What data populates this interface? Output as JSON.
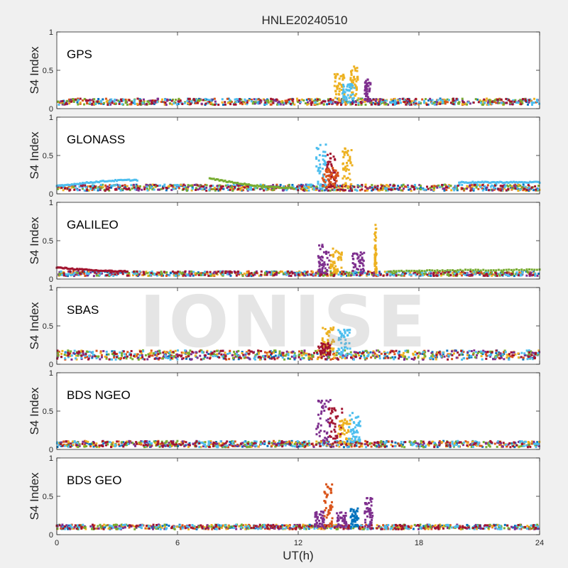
{
  "chart_data": {
    "type": "scatter",
    "title": "HNLE20240510",
    "xlabel": "UT(h)",
    "xlim": [
      0,
      24
    ],
    "xticks": [
      "0",
      "6",
      "12",
      "18",
      "24"
    ],
    "ylabel": "S4 Index",
    "ylim": [
      0,
      1
    ],
    "yticks": [
      "0",
      "0.5",
      "1"
    ],
    "grid": false,
    "series_colors": [
      "#0072bd",
      "#d95319",
      "#edb120",
      "#7e2f8e",
      "#77ac30",
      "#4dbeee",
      "#a2142f"
    ],
    "panels": [
      {
        "name": "GPS",
        "baseline": 0.09,
        "baseline_spread": 0.04,
        "activity": [
          {
            "x": [
              13.8,
              14.3
            ],
            "ymax": 0.5,
            "color": "#edb120"
          },
          {
            "x": [
              14.6,
              15.0
            ],
            "ymax": 0.55,
            "color": "#edb120"
          },
          {
            "x": [
              15.3,
              15.6
            ],
            "ymax": 0.38,
            "color": "#7e2f8e"
          },
          {
            "x": [
              14.2,
              14.8
            ],
            "ymax": 0.32,
            "color": "#4dbeee"
          }
        ]
      },
      {
        "name": "GLONASS",
        "baseline": 0.08,
        "baseline_spread": 0.04,
        "arcs": [
          {
            "x": [
              0,
              4
            ],
            "y0": 0.1,
            "peak": 0.18,
            "color": "#4dbeee"
          },
          {
            "x": [
              7.6,
              11.7
            ],
            "y0": 0.2,
            "peak": 0.08,
            "color": "#77ac30"
          },
          {
            "x": [
              20,
              24
            ],
            "y0": 0.15,
            "peak": 0.15,
            "color": "#4dbeee"
          }
        ],
        "activity": [
          {
            "x": [
              12.9,
              13.4
            ],
            "ymax": 0.65,
            "color": "#4dbeee"
          },
          {
            "x": [
              13.4,
              13.9
            ],
            "ymax": 0.55,
            "color": "#a2142f"
          },
          {
            "x": [
              14.2,
              14.7
            ],
            "ymax": 0.6,
            "color": "#edb120"
          },
          {
            "x": [
              13.2,
              14.0
            ],
            "ymax": 0.35,
            "color": "#d95319"
          }
        ]
      },
      {
        "name": "GALILEO",
        "baseline": 0.07,
        "baseline_spread": 0.03,
        "arcs": [
          {
            "x": [
              0,
              3.5
            ],
            "y0": 0.15,
            "peak": 0.1,
            "color": "#a2142f"
          },
          {
            "x": [
              16.5,
              24
            ],
            "y0": 0.1,
            "peak": 0.12,
            "color": "#77ac30"
          }
        ],
        "activity": [
          {
            "x": [
              13.0,
              13.6
            ],
            "ymax": 0.45,
            "color": "#7e2f8e"
          },
          {
            "x": [
              13.6,
              14.2
            ],
            "ymax": 0.4,
            "color": "#edb120"
          },
          {
            "x": [
              14.7,
              15.3
            ],
            "ymax": 0.35,
            "color": "#7e2f8e"
          },
          {
            "x": [
              15.8,
              15.9
            ],
            "ymax": 0.72,
            "color": "#edb120"
          }
        ]
      },
      {
        "name": "SBAS",
        "baseline": 0.12,
        "baseline_spread": 0.06,
        "activity": [
          {
            "x": [
              13.2,
              13.8
            ],
            "ymax": 0.5,
            "color": "#edb120"
          },
          {
            "x": [
              14.0,
              14.6
            ],
            "ymax": 0.45,
            "color": "#4dbeee"
          },
          {
            "x": [
              13.0,
              13.6
            ],
            "ymax": 0.28,
            "color": "#a2142f"
          }
        ]
      },
      {
        "name": "BDS NGEO",
        "baseline": 0.07,
        "baseline_spread": 0.04,
        "activity": [
          {
            "x": [
              12.9,
              13.6
            ],
            "ymax": 0.65,
            "color": "#7e2f8e"
          },
          {
            "x": [
              13.5,
              14.2
            ],
            "ymax": 0.55,
            "color": "#a2142f"
          },
          {
            "x": [
              14.0,
              14.6
            ],
            "ymax": 0.4,
            "color": "#edb120"
          },
          {
            "x": [
              14.5,
              15.1
            ],
            "ymax": 0.48,
            "color": "#4dbeee"
          }
        ]
      },
      {
        "name": "BDS GEO",
        "baseline": 0.1,
        "baseline_spread": 0.03,
        "activity": [
          {
            "x": [
              13.3,
              13.7
            ],
            "ymax": 0.66,
            "color": "#d95319"
          },
          {
            "x": [
              12.8,
              13.3
            ],
            "ymax": 0.3,
            "color": "#7e2f8e"
          },
          {
            "x": [
              13.9,
              14.4
            ],
            "ymax": 0.3,
            "color": "#7e2f8e"
          },
          {
            "x": [
              14.6,
              15.0
            ],
            "ymax": 0.35,
            "color": "#0072bd"
          },
          {
            "x": [
              15.3,
              15.7
            ],
            "ymax": 0.48,
            "color": "#7e2f8e"
          }
        ]
      }
    ]
  },
  "watermark": "IONISE"
}
